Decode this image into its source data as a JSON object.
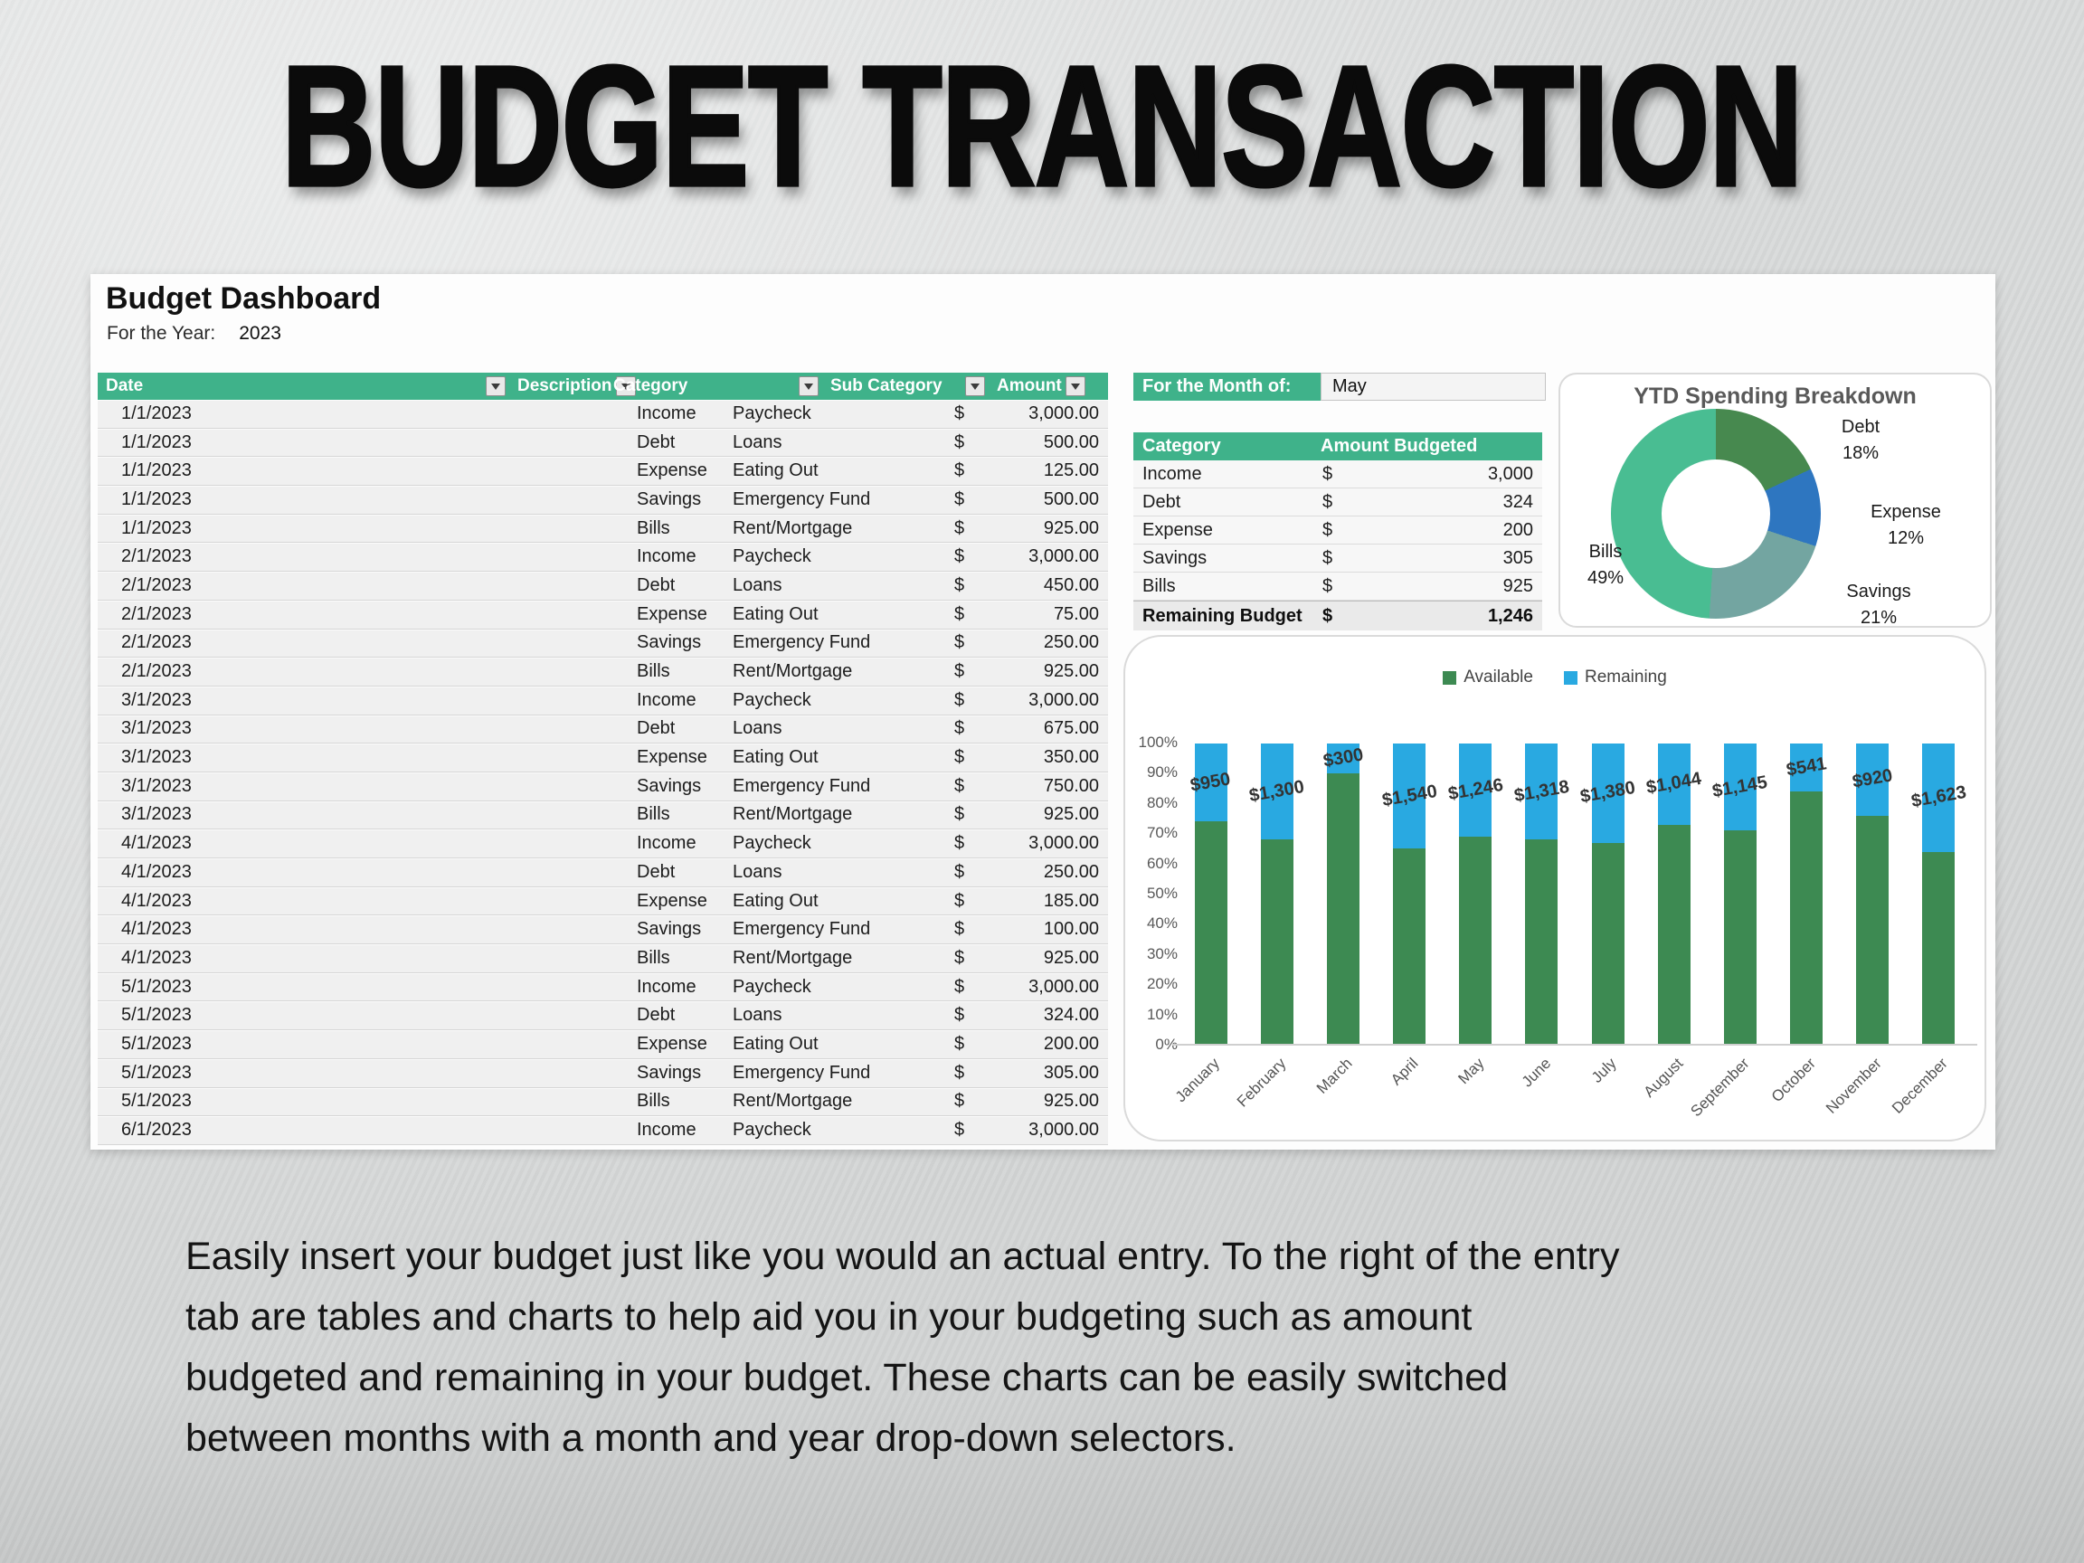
{
  "title": "BUDGET TRANSACTION",
  "description": "Easily insert your budget just like you would an actual entry. To the right of the entry\ntab are tables and charts to help aid you in your budgeting such as amount\nbudgeted and remaining in your budget. These charts can be easily switched\nbetween months with a month and year drop-down selectors.",
  "colors": {
    "header-green": "#3fb28a",
    "bar-green": "#3d8a52",
    "bar-blue": "#29a9e1",
    "card-border": "#dadada",
    "page-bg": "#d7d9d9"
  },
  "dashboard": {
    "title": "Budget Dashboard",
    "year_label": "For the Year:",
    "year_value": "2023",
    "transactions": {
      "currency": "$",
      "columns": [
        "Date",
        "Description",
        "Category",
        "Sub Category",
        "Amount"
      ],
      "rows": [
        {
          "date": "1/1/2023",
          "desc": "",
          "cat": "Income",
          "sub": "Paycheck",
          "amt": "3,000.00"
        },
        {
          "date": "1/1/2023",
          "desc": "",
          "cat": "Debt",
          "sub": "Loans",
          "amt": "500.00"
        },
        {
          "date": "1/1/2023",
          "desc": "",
          "cat": "Expense",
          "sub": "Eating Out",
          "amt": "125.00"
        },
        {
          "date": "1/1/2023",
          "desc": "",
          "cat": "Savings",
          "sub": "Emergency Fund",
          "amt": "500.00"
        },
        {
          "date": "1/1/2023",
          "desc": "",
          "cat": "Bills",
          "sub": "Rent/Mortgage",
          "amt": "925.00"
        },
        {
          "date": "2/1/2023",
          "desc": "",
          "cat": "Income",
          "sub": "Paycheck",
          "amt": "3,000.00"
        },
        {
          "date": "2/1/2023",
          "desc": "",
          "cat": "Debt",
          "sub": "Loans",
          "amt": "450.00"
        },
        {
          "date": "2/1/2023",
          "desc": "",
          "cat": "Expense",
          "sub": "Eating Out",
          "amt": "75.00"
        },
        {
          "date": "2/1/2023",
          "desc": "",
          "cat": "Savings",
          "sub": "Emergency Fund",
          "amt": "250.00"
        },
        {
          "date": "2/1/2023",
          "desc": "",
          "cat": "Bills",
          "sub": "Rent/Mortgage",
          "amt": "925.00"
        },
        {
          "date": "3/1/2023",
          "desc": "",
          "cat": "Income",
          "sub": "Paycheck",
          "amt": "3,000.00"
        },
        {
          "date": "3/1/2023",
          "desc": "",
          "cat": "Debt",
          "sub": "Loans",
          "amt": "675.00"
        },
        {
          "date": "3/1/2023",
          "desc": "",
          "cat": "Expense",
          "sub": "Eating Out",
          "amt": "350.00"
        },
        {
          "date": "3/1/2023",
          "desc": "",
          "cat": "Savings",
          "sub": "Emergency Fund",
          "amt": "750.00"
        },
        {
          "date": "3/1/2023",
          "desc": "",
          "cat": "Bills",
          "sub": "Rent/Mortgage",
          "amt": "925.00"
        },
        {
          "date": "4/1/2023",
          "desc": "",
          "cat": "Income",
          "sub": "Paycheck",
          "amt": "3,000.00"
        },
        {
          "date": "4/1/2023",
          "desc": "",
          "cat": "Debt",
          "sub": "Loans",
          "amt": "250.00"
        },
        {
          "date": "4/1/2023",
          "desc": "",
          "cat": "Expense",
          "sub": "Eating Out",
          "amt": "185.00"
        },
        {
          "date": "4/1/2023",
          "desc": "",
          "cat": "Savings",
          "sub": "Emergency Fund",
          "amt": "100.00"
        },
        {
          "date": "4/1/2023",
          "desc": "",
          "cat": "Bills",
          "sub": "Rent/Mortgage",
          "amt": "925.00"
        },
        {
          "date": "5/1/2023",
          "desc": "",
          "cat": "Income",
          "sub": "Paycheck",
          "amt": "3,000.00"
        },
        {
          "date": "5/1/2023",
          "desc": "",
          "cat": "Debt",
          "sub": "Loans",
          "amt": "324.00"
        },
        {
          "date": "5/1/2023",
          "desc": "",
          "cat": "Expense",
          "sub": "Eating Out",
          "amt": "200.00"
        },
        {
          "date": "5/1/2023",
          "desc": "",
          "cat": "Savings",
          "sub": "Emergency Fund",
          "amt": "305.00"
        },
        {
          "date": "5/1/2023",
          "desc": "",
          "cat": "Bills",
          "sub": "Rent/Mortgage",
          "amt": "925.00"
        },
        {
          "date": "6/1/2023",
          "desc": "",
          "cat": "Income",
          "sub": "Paycheck",
          "amt": "3,000.00"
        }
      ]
    },
    "month_panel": {
      "label": "For the Month of:",
      "value": "May",
      "table": {
        "columns": [
          "Category",
          "Amount Budgeted"
        ],
        "currency": "$",
        "rows": [
          {
            "cat": "Income",
            "amt": "3,000"
          },
          {
            "cat": "Debt",
            "amt": "324"
          },
          {
            "cat": "Expense",
            "amt": "200"
          },
          {
            "cat": "Savings",
            "amt": "305"
          },
          {
            "cat": "Bills",
            "amt": "925"
          }
        ],
        "total_label": "Remaining Budget",
        "total_value": "1,246"
      }
    }
  },
  "chart_data": [
    {
      "type": "donut",
      "title": "YTD Spending Breakdown",
      "legend_position": "none",
      "slices": [
        {
          "label": "Debt",
          "pct": 18,
          "pct_label": "18%",
          "color": "#47894f"
        },
        {
          "label": "Expense",
          "pct": 12,
          "pct_label": "12%",
          "color": "#2e76c0"
        },
        {
          "label": "Savings",
          "pct": 21,
          "pct_label": "21%",
          "color": "#73a5a1"
        },
        {
          "label": "Bills",
          "pct": 49,
          "pct_label": "49%",
          "color": "#49bd92"
        }
      ]
    },
    {
      "type": "stacked-bar-100",
      "title": "",
      "legend_position": "top",
      "ylim": [
        "0%",
        "100%"
      ],
      "y_ticks": [
        "100%",
        "90%",
        "80%",
        "70%",
        "60%",
        "50%",
        "40%",
        "30%",
        "20%",
        "10%",
        "0%"
      ],
      "legend_items": [
        {
          "name": "Available",
          "color": "#3d8a52"
        },
        {
          "name": "Remaining",
          "color": "#29a9e1"
        }
      ],
      "bars": [
        {
          "month": "January",
          "available_pct": 74,
          "remaining_pct": 26,
          "label": "$950"
        },
        {
          "month": "February",
          "available_pct": 68,
          "remaining_pct": 32,
          "label": "$1,300"
        },
        {
          "month": "March",
          "available_pct": 90,
          "remaining_pct": 10,
          "label": "$300"
        },
        {
          "month": "April",
          "available_pct": 65,
          "remaining_pct": 35,
          "label": "$1,540"
        },
        {
          "month": "May",
          "available_pct": 69,
          "remaining_pct": 31,
          "label": "$1,246"
        },
        {
          "month": "June",
          "available_pct": 68,
          "remaining_pct": 32,
          "label": "$1,318"
        },
        {
          "month": "July",
          "available_pct": 67,
          "remaining_pct": 33,
          "label": "$1,380"
        },
        {
          "month": "August",
          "available_pct": 73,
          "remaining_pct": 27,
          "label": "$1,044"
        },
        {
          "month": "September",
          "available_pct": 71,
          "remaining_pct": 29,
          "label": "$1,145"
        },
        {
          "month": "October",
          "available_pct": 84,
          "remaining_pct": 16,
          "label": "$541"
        },
        {
          "month": "November",
          "available_pct": 76,
          "remaining_pct": 24,
          "label": "$920"
        },
        {
          "month": "December",
          "available_pct": 64,
          "remaining_pct": 36,
          "label": "$1,623"
        }
      ]
    }
  ]
}
